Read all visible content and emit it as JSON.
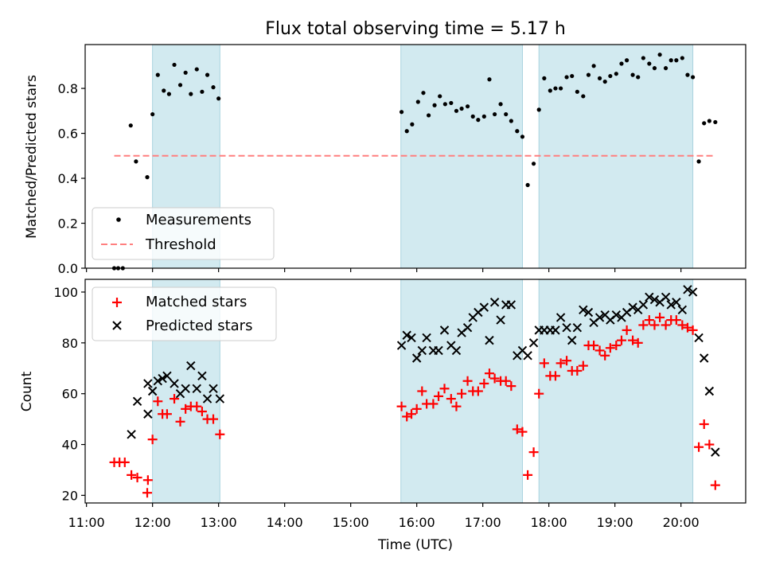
{
  "chart_data": {
    "title": "Flux total observing time = 5.17 h",
    "xlabel": "Time (UTC)",
    "x_unit": "decimal hours UTC",
    "xlim": [
      10.98,
      20.98
    ],
    "x_ticks": [
      11,
      12,
      13,
      14,
      15,
      16,
      17,
      18,
      19,
      20
    ],
    "x_tick_labels": [
      "11:00",
      "12:00",
      "13:00",
      "14:00",
      "15:00",
      "16:00",
      "17:00",
      "18:00",
      "19:00",
      "20:00"
    ],
    "shaded_intervals": [
      [
        12.0,
        13.02
      ],
      [
        15.76,
        17.6
      ],
      [
        17.85,
        20.18
      ]
    ],
    "shade_color": "#d2eaf0",
    "panels": [
      {
        "type": "scatter",
        "ylabel": "Matched/Predicted stars",
        "ylim": [
          0.0,
          0.995
        ],
        "y_ticks": [
          0.0,
          0.2,
          0.4,
          0.6,
          0.8
        ],
        "y_tick_labels": [
          "0.0",
          "0.2",
          "0.4",
          "0.6",
          "0.8"
        ],
        "legend_location": "lower-left",
        "series": [
          {
            "name": "Measurements",
            "marker": "dot",
            "color": "#000000",
            "points": [
              [
                11.42,
                0.0
              ],
              [
                11.48,
                0.0
              ],
              [
                11.55,
                0.0
              ],
              [
                11.67,
                0.635
              ],
              [
                11.75,
                0.475
              ],
              [
                11.92,
                0.405
              ],
              [
                12.0,
                0.685
              ],
              [
                12.08,
                0.86
              ],
              [
                12.17,
                0.79
              ],
              [
                12.25,
                0.775
              ],
              [
                12.33,
                0.905
              ],
              [
                12.42,
                0.815
              ],
              [
                12.5,
                0.87
              ],
              [
                12.58,
                0.775
              ],
              [
                12.67,
                0.885
              ],
              [
                12.75,
                0.785
              ],
              [
                12.83,
                0.86
              ],
              [
                12.92,
                0.805
              ],
              [
                13.0,
                0.755
              ],
              [
                15.77,
                0.695
              ],
              [
                15.85,
                0.61
              ],
              [
                15.93,
                0.64
              ],
              [
                16.02,
                0.74
              ],
              [
                16.1,
                0.78
              ],
              [
                16.18,
                0.68
              ],
              [
                16.27,
                0.725
              ],
              [
                16.35,
                0.765
              ],
              [
                16.43,
                0.73
              ],
              [
                16.52,
                0.735
              ],
              [
                16.6,
                0.7
              ],
              [
                16.68,
                0.71
              ],
              [
                16.77,
                0.72
              ],
              [
                16.85,
                0.675
              ],
              [
                16.93,
                0.66
              ],
              [
                17.02,
                0.675
              ],
              [
                17.1,
                0.84
              ],
              [
                17.18,
                0.685
              ],
              [
                17.27,
                0.73
              ],
              [
                17.35,
                0.685
              ],
              [
                17.43,
                0.655
              ],
              [
                17.52,
                0.61
              ],
              [
                17.6,
                0.585
              ],
              [
                17.68,
                0.37
              ],
              [
                17.77,
                0.465
              ],
              [
                17.85,
                0.705
              ],
              [
                17.93,
                0.845
              ],
              [
                18.02,
                0.79
              ],
              [
                18.1,
                0.8
              ],
              [
                18.18,
                0.8
              ],
              [
                18.27,
                0.85
              ],
              [
                18.35,
                0.855
              ],
              [
                18.43,
                0.785
              ],
              [
                18.52,
                0.765
              ],
              [
                18.6,
                0.86
              ],
              [
                18.68,
                0.9
              ],
              [
                18.77,
                0.845
              ],
              [
                18.85,
                0.83
              ],
              [
                18.93,
                0.855
              ],
              [
                19.02,
                0.865
              ],
              [
                19.1,
                0.91
              ],
              [
                19.18,
                0.925
              ],
              [
                19.27,
                0.86
              ],
              [
                19.35,
                0.85
              ],
              [
                19.43,
                0.935
              ],
              [
                19.52,
                0.91
              ],
              [
                19.6,
                0.89
              ],
              [
                19.68,
                0.95
              ],
              [
                19.77,
                0.89
              ],
              [
                19.85,
                0.925
              ],
              [
                19.93,
                0.925
              ],
              [
                20.02,
                0.935
              ],
              [
                20.1,
                0.86
              ],
              [
                20.18,
                0.85
              ],
              [
                20.27,
                0.475
              ],
              [
                20.35,
                0.645
              ],
              [
                20.43,
                0.655
              ],
              [
                20.52,
                0.65
              ]
            ]
          },
          {
            "name": "Threshold",
            "marker": "dashed-line",
            "color": "#ff7f7f",
            "x": [
              11.42,
              20.52
            ],
            "y": [
              0.5,
              0.5
            ]
          }
        ]
      },
      {
        "type": "scatter",
        "ylabel": "Count",
        "ylim": [
          17,
          105
        ],
        "y_ticks": [
          20,
          40,
          60,
          80,
          100
        ],
        "y_tick_labels": [
          "20",
          "40",
          "60",
          "80",
          "100"
        ],
        "legend_location": "upper-left",
        "series": [
          {
            "name": "Matched stars",
            "marker": "plus",
            "color": "#ff0000",
            "points": [
              [
                11.42,
                33
              ],
              [
                11.5,
                33
              ],
              [
                11.58,
                33
              ],
              [
                11.68,
                28
              ],
              [
                11.77,
                27
              ],
              [
                11.92,
                21
              ],
              [
                11.93,
                26
              ],
              [
                12.0,
                42
              ],
              [
                12.08,
                57
              ],
              [
                12.15,
                52
              ],
              [
                12.22,
                52
              ],
              [
                12.33,
                58
              ],
              [
                12.42,
                49
              ],
              [
                12.5,
                54
              ],
              [
                12.58,
                55
              ],
              [
                12.67,
                55
              ],
              [
                12.75,
                53
              ],
              [
                12.83,
                50
              ],
              [
                12.92,
                50
              ],
              [
                13.02,
                44
              ],
              [
                15.77,
                55
              ],
              [
                15.85,
                51
              ],
              [
                15.92,
                52
              ],
              [
                16.0,
                54
              ],
              [
                16.08,
                61
              ],
              [
                16.15,
                56
              ],
              [
                16.25,
                56
              ],
              [
                16.33,
                59
              ],
              [
                16.42,
                62
              ],
              [
                16.52,
                58
              ],
              [
                16.6,
                55
              ],
              [
                16.68,
                60
              ],
              [
                16.77,
                65
              ],
              [
                16.85,
                61
              ],
              [
                16.93,
                61
              ],
              [
                17.02,
                64
              ],
              [
                17.1,
                68
              ],
              [
                17.18,
                66
              ],
              [
                17.27,
                65
              ],
              [
                17.35,
                65
              ],
              [
                17.43,
                63
              ],
              [
                17.52,
                46
              ],
              [
                17.6,
                45
              ],
              [
                17.68,
                28
              ],
              [
                17.77,
                37
              ],
              [
                17.85,
                60
              ],
              [
                17.93,
                72
              ],
              [
                18.02,
                67
              ],
              [
                18.1,
                67
              ],
              [
                18.18,
                72
              ],
              [
                18.27,
                73
              ],
              [
                18.35,
                69
              ],
              [
                18.43,
                69
              ],
              [
                18.52,
                71
              ],
              [
                18.6,
                79
              ],
              [
                18.68,
                79
              ],
              [
                18.77,
                77
              ],
              [
                18.85,
                75
              ],
              [
                18.93,
                78
              ],
              [
                19.02,
                79
              ],
              [
                19.1,
                81
              ],
              [
                19.18,
                85
              ],
              [
                19.27,
                81
              ],
              [
                19.35,
                80
              ],
              [
                19.43,
                87
              ],
              [
                19.52,
                89
              ],
              [
                19.6,
                87
              ],
              [
                19.68,
                90
              ],
              [
                19.77,
                87
              ],
              [
                19.85,
                89
              ],
              [
                19.93,
                89
              ],
              [
                20.02,
                87
              ],
              [
                20.1,
                86
              ],
              [
                20.18,
                85
              ],
              [
                20.27,
                39
              ],
              [
                20.35,
                48
              ],
              [
                20.43,
                40
              ],
              [
                20.52,
                24
              ]
            ]
          },
          {
            "name": "Predicted stars",
            "marker": "x",
            "color": "#000000",
            "points": [
              [
                11.68,
                44
              ],
              [
                11.77,
                57
              ],
              [
                11.93,
                52
              ],
              [
                11.93,
                64
              ],
              [
                12.0,
                61
              ],
              [
                12.08,
                65
              ],
              [
                12.15,
                66
              ],
              [
                12.22,
                67
              ],
              [
                12.33,
                64
              ],
              [
                12.42,
                60
              ],
              [
                12.5,
                62
              ],
              [
                12.58,
                71
              ],
              [
                12.67,
                62
              ],
              [
                12.75,
                67
              ],
              [
                12.83,
                58
              ],
              [
                12.92,
                62
              ],
              [
                13.02,
                58
              ],
              [
                15.77,
                79
              ],
              [
                15.85,
                83
              ],
              [
                15.92,
                82
              ],
              [
                16.0,
                74
              ],
              [
                16.08,
                77
              ],
              [
                16.15,
                82
              ],
              [
                16.25,
                77
              ],
              [
                16.33,
                77
              ],
              [
                16.42,
                85
              ],
              [
                16.52,
                79
              ],
              [
                16.6,
                77
              ],
              [
                16.68,
                84
              ],
              [
                16.77,
                86
              ],
              [
                16.85,
                90
              ],
              [
                16.93,
                92
              ],
              [
                17.02,
                94
              ],
              [
                17.1,
                81
              ],
              [
                17.18,
                96
              ],
              [
                17.27,
                89
              ],
              [
                17.35,
                95
              ],
              [
                17.43,
                95
              ],
              [
                17.52,
                75
              ],
              [
                17.6,
                77
              ],
              [
                17.68,
                75
              ],
              [
                17.77,
                80
              ],
              [
                17.85,
                85
              ],
              [
                17.93,
                85
              ],
              [
                18.02,
                85
              ],
              [
                18.1,
                85
              ],
              [
                18.18,
                90
              ],
              [
                18.27,
                86
              ],
              [
                18.35,
                81
              ],
              [
                18.43,
                86
              ],
              [
                18.52,
                93
              ],
              [
                18.6,
                92
              ],
              [
                18.68,
                88
              ],
              [
                18.77,
                90
              ],
              [
                18.85,
                91
              ],
              [
                18.93,
                89
              ],
              [
                19.02,
                91
              ],
              [
                19.1,
                90
              ],
              [
                19.18,
                92
              ],
              [
                19.27,
                94
              ],
              [
                19.35,
                93
              ],
              [
                19.43,
                95
              ],
              [
                19.52,
                98
              ],
              [
                19.6,
                97
              ],
              [
                19.68,
                96
              ],
              [
                19.77,
                98
              ],
              [
                19.85,
                95
              ],
              [
                19.93,
                96
              ],
              [
                20.02,
                93
              ],
              [
                20.1,
                101
              ],
              [
                20.18,
                100
              ],
              [
                20.27,
                82
              ],
              [
                20.35,
                74
              ],
              [
                20.43,
                61
              ],
              [
                20.52,
                37
              ]
            ]
          }
        ]
      }
    ]
  }
}
